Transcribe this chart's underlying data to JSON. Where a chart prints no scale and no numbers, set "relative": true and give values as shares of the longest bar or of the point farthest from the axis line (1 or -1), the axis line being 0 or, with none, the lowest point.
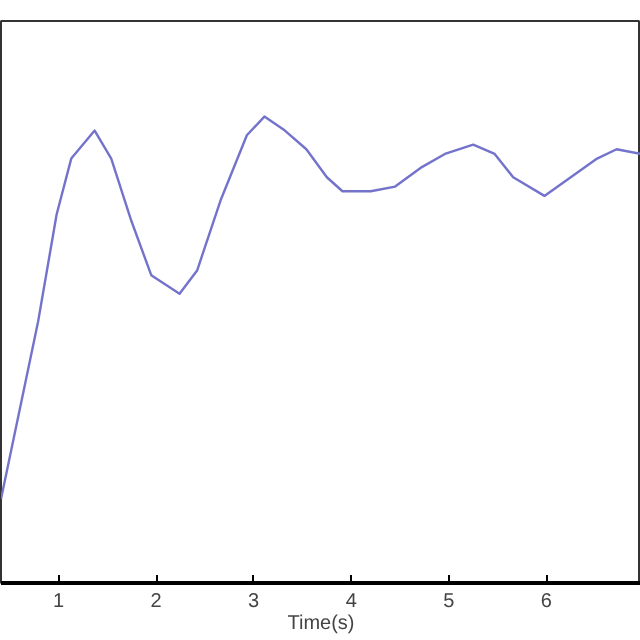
{
  "chart_data": {
    "type": "line",
    "xlabel": "Time(s)",
    "relative": true,
    "xlim": [
      0.41,
      6.97
    ],
    "xticks": [
      1,
      2,
      3,
      4,
      5,
      6
    ],
    "grid": false,
    "series": [
      {
        "color": "#7373cc",
        "x": [
          0.41,
          0.79,
          0.98,
          1.13,
          1.37,
          1.54,
          1.74,
          1.95,
          2.24,
          2.42,
          2.66,
          2.93,
          3.11,
          3.32,
          3.54,
          3.75,
          3.91,
          4.2,
          4.45,
          4.71,
          4.96,
          5.25,
          5.47,
          5.66,
          5.98,
          6.25,
          6.52,
          6.72,
          6.97
        ],
        "values": [
          0.18,
          0.56,
          0.79,
          0.91,
          0.97,
          0.91,
          0.78,
          0.66,
          0.62,
          0.67,
          0.82,
          0.96,
          1.0,
          0.97,
          0.93,
          0.87,
          0.84,
          0.84,
          0.85,
          0.89,
          0.92,
          0.94,
          0.92,
          0.87,
          0.83,
          0.87,
          0.91,
          0.93,
          0.92
        ]
      }
    ]
  }
}
